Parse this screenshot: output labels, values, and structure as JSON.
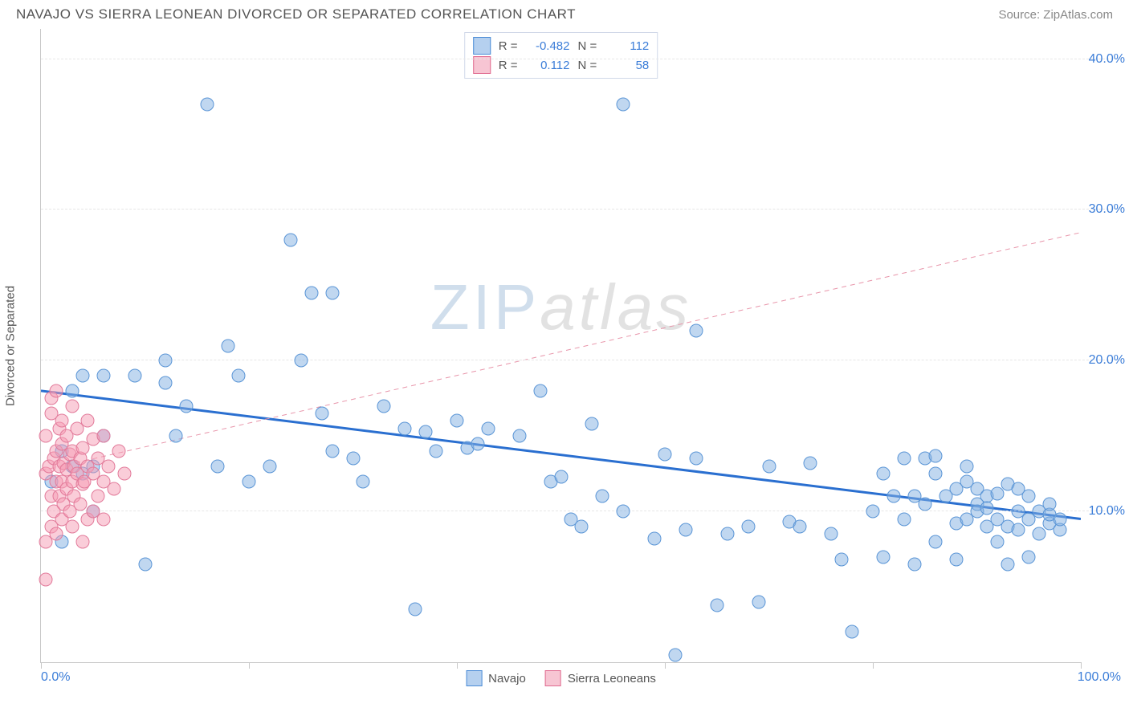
{
  "title": "NAVAJO VS SIERRA LEONEAN DIVORCED OR SEPARATED CORRELATION CHART",
  "source": "Source: ZipAtlas.com",
  "yaxis_title": "Divorced or Separated",
  "watermark_a": "ZIP",
  "watermark_b": "atlas",
  "chart": {
    "type": "scatter",
    "xlim": [
      0,
      100
    ],
    "ylim": [
      0,
      42
    ],
    "y_gridlines": [
      10,
      20,
      30,
      40
    ],
    "y_labels": [
      "10.0%",
      "20.0%",
      "30.0%",
      "40.0%"
    ],
    "x_ticks": [
      0,
      20,
      40,
      60,
      80,
      100
    ],
    "x_label_min": "0.0%",
    "x_label_max": "100.0%",
    "background_color": "#ffffff",
    "grid_color": "#e6e6e6",
    "marker_size": 17,
    "series": [
      {
        "name": "Navajo",
        "color_fill": "rgba(130,175,225,0.5)",
        "color_stroke": "#5a95d6",
        "R": "-0.482",
        "N": "112",
        "trend": {
          "x1": 0,
          "y1": 18.0,
          "x2": 100,
          "y2": 9.5,
          "stroke": "#2a6fd0",
          "width": 3,
          "dash": "none"
        },
        "points": [
          [
            1,
            12
          ],
          [
            2,
            14
          ],
          [
            2,
            8
          ],
          [
            3,
            13
          ],
          [
            3,
            18
          ],
          [
            4,
            12.5
          ],
          [
            4,
            19
          ],
          [
            5,
            13
          ],
          [
            5,
            10
          ],
          [
            6,
            19
          ],
          [
            6,
            15
          ],
          [
            9,
            19
          ],
          [
            10,
            6.5
          ],
          [
            12,
            20
          ],
          [
            12,
            18.5
          ],
          [
            13,
            15
          ],
          [
            14,
            17
          ],
          [
            16,
            37
          ],
          [
            17,
            13
          ],
          [
            18,
            21
          ],
          [
            19,
            19
          ],
          [
            20,
            12
          ],
          [
            22,
            13
          ],
          [
            24,
            28
          ],
          [
            25,
            20
          ],
          [
            26,
            24.5
          ],
          [
            27,
            16.5
          ],
          [
            28,
            14
          ],
          [
            28,
            24.5
          ],
          [
            30,
            13.5
          ],
          [
            31,
            12
          ],
          [
            33,
            17
          ],
          [
            35,
            15.5
          ],
          [
            36,
            3.5
          ],
          [
            37,
            15.3
          ],
          [
            38,
            14
          ],
          [
            40,
            16
          ],
          [
            41,
            14.2
          ],
          [
            42,
            14.5
          ],
          [
            43,
            15.5
          ],
          [
            46,
            15
          ],
          [
            48,
            18
          ],
          [
            49,
            12
          ],
          [
            50,
            12.3
          ],
          [
            51,
            9.5
          ],
          [
            52,
            9
          ],
          [
            53,
            15.8
          ],
          [
            54,
            11
          ],
          [
            56,
            10
          ],
          [
            56,
            37
          ],
          [
            59,
            8.2
          ],
          [
            60,
            13.8
          ],
          [
            61,
            0.5
          ],
          [
            62,
            8.8
          ],
          [
            63,
            13.5
          ],
          [
            63,
            22
          ],
          [
            65,
            3.8
          ],
          [
            66,
            8.5
          ],
          [
            68,
            9
          ],
          [
            69,
            4
          ],
          [
            70,
            13
          ],
          [
            72,
            9.3
          ],
          [
            73,
            9
          ],
          [
            74,
            13.2
          ],
          [
            76,
            8.5
          ],
          [
            77,
            6.8
          ],
          [
            78,
            2
          ],
          [
            80,
            10
          ],
          [
            81,
            7
          ],
          [
            82,
            11
          ],
          [
            83,
            9.5
          ],
          [
            83,
            13.5
          ],
          [
            84,
            6.5
          ],
          [
            85,
            13.5
          ],
          [
            86,
            12.5
          ],
          [
            86,
            13.7
          ],
          [
            86,
            8
          ],
          [
            87,
            11
          ],
          [
            88,
            9.2
          ],
          [
            88,
            6.8
          ],
          [
            89,
            13
          ],
          [
            89,
            9.5
          ],
          [
            89,
            12
          ],
          [
            90,
            10.5
          ],
          [
            90,
            10
          ],
          [
            90,
            11.5
          ],
          [
            91,
            9
          ],
          [
            91,
            11
          ],
          [
            91,
            10.2
          ],
          [
            92,
            9.5
          ],
          [
            92,
            11.2
          ],
          [
            92,
            8
          ],
          [
            93,
            9
          ],
          [
            93,
            6.5
          ],
          [
            93,
            11.8
          ],
          [
            94,
            8.8
          ],
          [
            94,
            10
          ],
          [
            95,
            9.5
          ],
          [
            95,
            11
          ],
          [
            95,
            7
          ],
          [
            96,
            8.5
          ],
          [
            96,
            10
          ],
          [
            97,
            9.2
          ],
          [
            97,
            9.8
          ],
          [
            97,
            10.5
          ],
          [
            98,
            8.8
          ],
          [
            98,
            9.5
          ],
          [
            81,
            12.5
          ],
          [
            84,
            11
          ],
          [
            85,
            10.5
          ],
          [
            88,
            11.5
          ],
          [
            94,
            11.5
          ]
        ]
      },
      {
        "name": "Sierra Leoneans",
        "color_fill": "rgba(245,155,180,0.5)",
        "color_stroke": "#e27a9a",
        "R": "0.112",
        "N": "58",
        "trend": {
          "x1": 0,
          "y1": 12.7,
          "x2": 100,
          "y2": 28.5,
          "stroke": "#e895aa",
          "width": 1,
          "dash": "6,5"
        },
        "points": [
          [
            0.5,
            5.5
          ],
          [
            0.5,
            8
          ],
          [
            0.5,
            12.5
          ],
          [
            0.5,
            15
          ],
          [
            0.8,
            13
          ],
          [
            1,
            9
          ],
          [
            1,
            11
          ],
          [
            1,
            16.5
          ],
          [
            1,
            17.5
          ],
          [
            1.2,
            10
          ],
          [
            1.2,
            13.5
          ],
          [
            1.5,
            12
          ],
          [
            1.5,
            14
          ],
          [
            1.5,
            8.5
          ],
          [
            1.5,
            18
          ],
          [
            1.8,
            11
          ],
          [
            1.8,
            13
          ],
          [
            1.8,
            15.5
          ],
          [
            2,
            9.5
          ],
          [
            2,
            12
          ],
          [
            2,
            14.5
          ],
          [
            2,
            16
          ],
          [
            2.2,
            10.5
          ],
          [
            2.2,
            13.2
          ],
          [
            2.5,
            11.5
          ],
          [
            2.5,
            12.8
          ],
          [
            2.5,
            15
          ],
          [
            2.8,
            10
          ],
          [
            2.8,
            13.8
          ],
          [
            3,
            9
          ],
          [
            3,
            12
          ],
          [
            3,
            14
          ],
          [
            3,
            17
          ],
          [
            3.2,
            11
          ],
          [
            3.2,
            13
          ],
          [
            3.5,
            12.5
          ],
          [
            3.5,
            15.5
          ],
          [
            3.8,
            10.5
          ],
          [
            3.8,
            13.5
          ],
          [
            4,
            8
          ],
          [
            4,
            11.8
          ],
          [
            4,
            14.2
          ],
          [
            4.2,
            12
          ],
          [
            4.5,
            9.5
          ],
          [
            4.5,
            13
          ],
          [
            4.5,
            16
          ],
          [
            5,
            10
          ],
          [
            5,
            12.5
          ],
          [
            5,
            14.8
          ],
          [
            5.5,
            11
          ],
          [
            5.5,
            13.5
          ],
          [
            6,
            9.5
          ],
          [
            6,
            12
          ],
          [
            6,
            15
          ],
          [
            6.5,
            13
          ],
          [
            7,
            11.5
          ],
          [
            7.5,
            14
          ],
          [
            8,
            12.5
          ]
        ]
      }
    ]
  },
  "legend_bottom": [
    {
      "label": "Navajo",
      "cls": "blue"
    },
    {
      "label": "Sierra Leoneans",
      "cls": "pink"
    }
  ],
  "legend_top": [
    {
      "cls": "blue",
      "R_label": "R =",
      "R": "-0.482",
      "N_label": "N =",
      "N": "112"
    },
    {
      "cls": "pink",
      "R_label": "R =",
      "R": "0.112",
      "N_label": "N =",
      "N": "58"
    }
  ]
}
